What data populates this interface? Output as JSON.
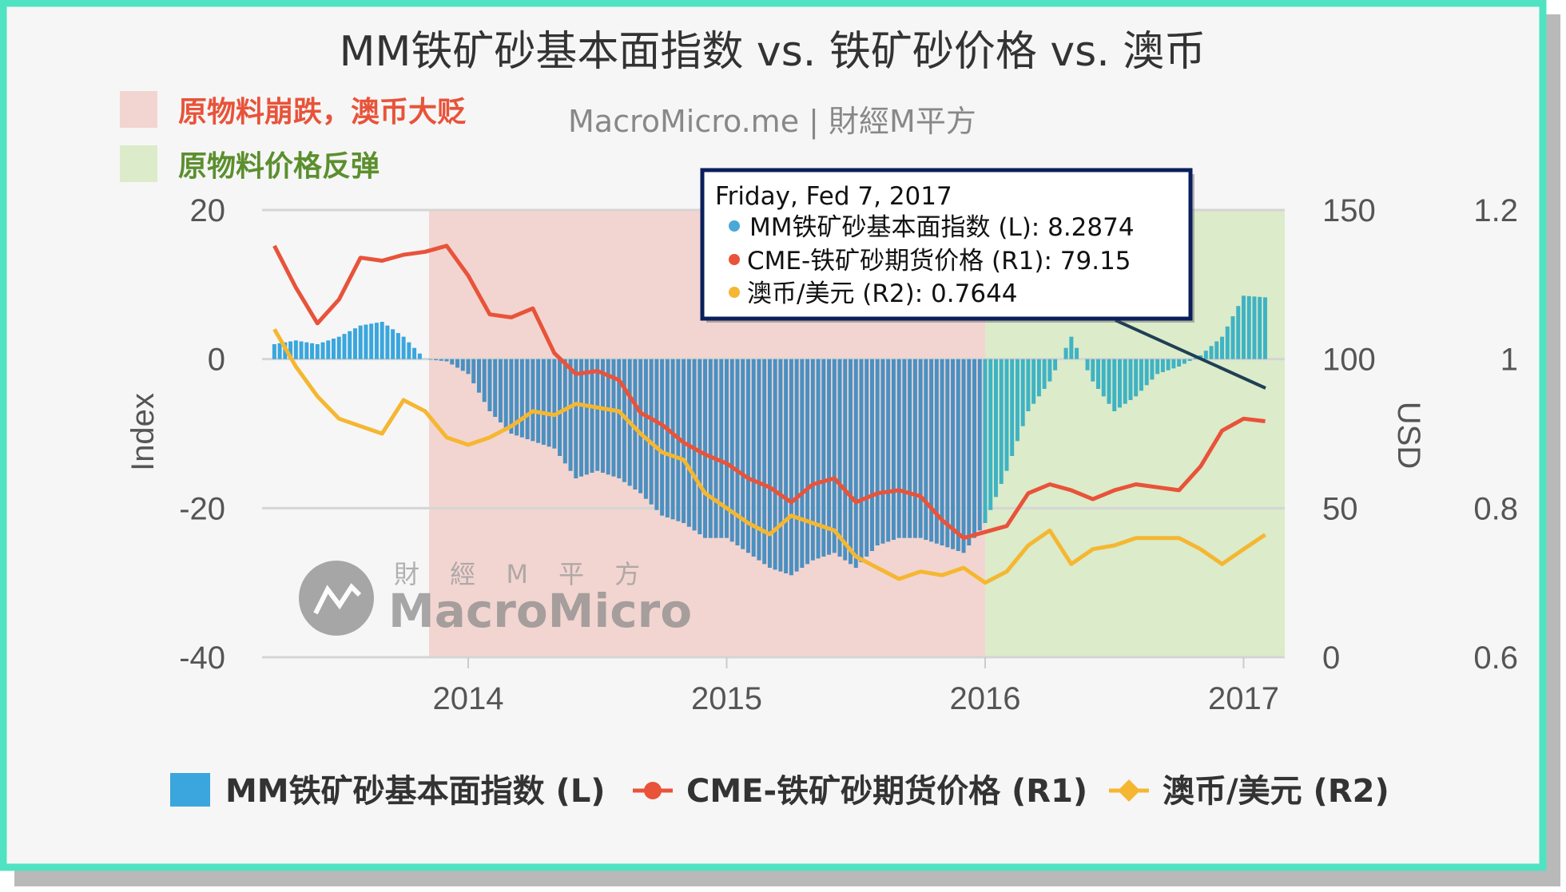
{
  "colors": {
    "frame": "#50e3c2",
    "bars": "#4a90c2",
    "bars_green": "#3fb3c4",
    "iron": "#e8533a",
    "aud": "#f5b731",
    "band_red": "#f2d5d0",
    "band_green": "#dcebc9"
  },
  "header": {
    "title": "MM铁矿砂基本面指数 vs. 铁矿砂价格 vs. 澳币",
    "source": "MacroMicro.me | 財經M平方",
    "band_legend": [
      {
        "label": "原物料崩跌，澳币大贬",
        "color": "#e8533a"
      },
      {
        "label": "原物料价格反弹",
        "color": "#5b8f2e"
      }
    ]
  },
  "watermark": {
    "cn": "財 經 M 平 方",
    "en": "MacroMicro"
  },
  "tooltip": {
    "date": "Friday, Fed 7, 2017",
    "rows": [
      {
        "label": "MM铁矿砂基本面指数 (L): 8.2874",
        "color": "#4aa8d8"
      },
      {
        "label": "CME-铁矿砂期货价格 (R1): 79.15",
        "color": "#e8533a"
      },
      {
        "label": "澳币/美元 (R2): 0.7644",
        "color": "#f5b731"
      }
    ]
  },
  "chart_data": {
    "type": "bar+line",
    "title": "MM铁矿砂基本面指数 vs. 铁矿砂价格 vs. 澳币",
    "ylabel_left": "Index",
    "ylabel_right": "USD",
    "x_ticks": [
      "2014",
      "2015",
      "2016",
      "2017"
    ],
    "y_left": {
      "range": [
        -40,
        20
      ],
      "ticks": [
        "20",
        "0",
        "-20",
        "-40"
      ]
    },
    "y_right1": {
      "range": [
        0,
        150
      ],
      "ticks": [
        "150",
        "100",
        "50",
        "0"
      ]
    },
    "y_right2": {
      "range": [
        0.6,
        1.2
      ],
      "ticks": [
        "1.2",
        "1",
        "0.8",
        "0.6"
      ]
    },
    "grid": true,
    "legend_position": "bottom",
    "bands": [
      {
        "from": "2013-12",
        "to": "2016-01",
        "label": "原物料崩跌，澳币大贬"
      },
      {
        "from": "2016-01",
        "to": "2017-02",
        "label": "原物料价格反弹"
      }
    ],
    "dates": [
      "2013-04",
      "2013-05",
      "2013-06",
      "2013-07",
      "2013-08",
      "2013-09",
      "2013-10",
      "2013-11",
      "2013-12",
      "2014-01",
      "2014-02",
      "2014-03",
      "2014-04",
      "2014-05",
      "2014-06",
      "2014-07",
      "2014-08",
      "2014-09",
      "2014-10",
      "2014-11",
      "2014-12",
      "2015-01",
      "2015-02",
      "2015-03",
      "2015-04",
      "2015-05",
      "2015-06",
      "2015-07",
      "2015-08",
      "2015-09",
      "2015-10",
      "2015-11",
      "2015-12",
      "2016-01",
      "2016-02",
      "2016-03",
      "2016-04",
      "2016-05",
      "2016-06",
      "2016-07",
      "2016-08",
      "2016-09",
      "2016-10",
      "2016-11",
      "2016-12",
      "2017-01",
      "2017-02"
    ],
    "series": [
      {
        "name": "MM铁矿砂基本面指数 (L)",
        "type": "bar",
        "axis": "left",
        "values": [
          2,
          2.5,
          2,
          3,
          4.5,
          5,
          3,
          0,
          -0.3,
          -2,
          -7,
          -10,
          -11,
          -12,
          -16,
          -15,
          -16,
          -18,
          -21,
          -22,
          -24,
          -24,
          -26,
          -28,
          -29,
          -27,
          -26,
          -28,
          -25,
          -24,
          -24,
          -25,
          -26,
          -22,
          -15,
          -7,
          -3,
          3,
          -3,
          -7,
          -5,
          -2,
          -1,
          0.5,
          3,
          8.5,
          8.2874
        ]
      },
      {
        "name": "CME-铁矿砂期货价格 (R1)",
        "type": "line",
        "axis": "right1",
        "values": [
          138,
          124,
          112,
          120,
          134,
          133,
          135,
          136,
          138,
          128,
          115,
          114,
          117,
          102,
          95,
          96,
          93,
          82,
          78,
          72,
          68,
          65,
          60,
          57,
          52,
          58,
          60,
          52,
          55,
          56,
          54,
          46,
          40,
          42,
          44,
          55,
          58,
          56,
          53,
          56,
          58,
          57,
          56,
          64,
          76,
          80,
          79.15
        ]
      },
      {
        "name": "澳币/美元 (R2)",
        "type": "line",
        "axis": "right2",
        "values": [
          1.04,
          0.99,
          0.95,
          0.92,
          0.91,
          0.9,
          0.945,
          0.93,
          0.895,
          0.885,
          0.895,
          0.91,
          0.93,
          0.925,
          0.94,
          0.935,
          0.93,
          0.9,
          0.875,
          0.865,
          0.82,
          0.8,
          0.78,
          0.765,
          0.79,
          0.78,
          0.77,
          0.735,
          0.72,
          0.705,
          0.715,
          0.71,
          0.72,
          0.7,
          0.715,
          0.75,
          0.77,
          0.725,
          0.745,
          0.75,
          0.76,
          0.76,
          0.76,
          0.745,
          0.725,
          0.745,
          0.7644
        ]
      }
    ]
  }
}
